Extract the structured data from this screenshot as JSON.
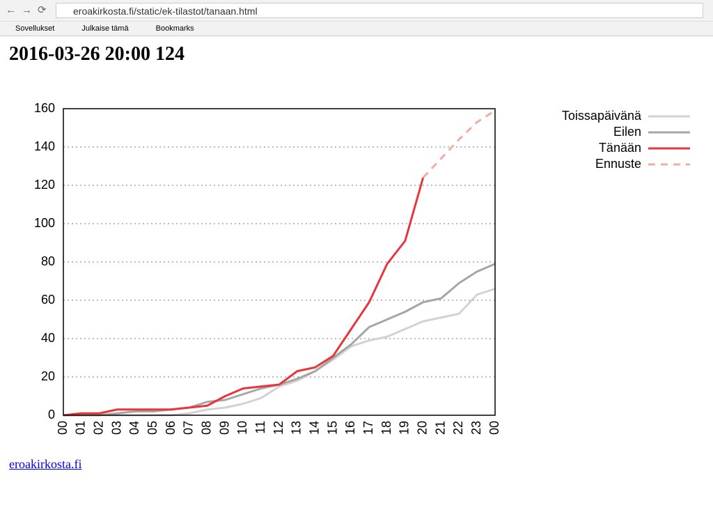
{
  "browser": {
    "url": "eroakirkosta.fi/static/ek-tilastot/tanaan.html",
    "bookmarks": [
      "Sovellukset",
      "Julkaise tämä",
      "Bookmarks"
    ]
  },
  "heading": "2016-03-26 20:00 124",
  "link": "eroakirkosta.fi",
  "chart_data": {
    "type": "line",
    "categories": [
      "00",
      "01",
      "02",
      "03",
      "04",
      "05",
      "06",
      "07",
      "08",
      "09",
      "10",
      "11",
      "12",
      "13",
      "14",
      "15",
      "16",
      "17",
      "18",
      "19",
      "20",
      "21",
      "22",
      "23",
      "00"
    ],
    "series": [
      {
        "name": "Toissapäivänä",
        "color": "#d2d2d2",
        "values": [
          0,
          0,
          0,
          0,
          0,
          0,
          0,
          1,
          3,
          4,
          6,
          9,
          15,
          18,
          23,
          29,
          36,
          39,
          41,
          45,
          49,
          51,
          53,
          63,
          66
        ]
      },
      {
        "name": "Eilen",
        "color": "#a6a6a6",
        "values": [
          0,
          0,
          0,
          1,
          2,
          2,
          3,
          4,
          7,
          8,
          11,
          14,
          16,
          19,
          23,
          30,
          37,
          46,
          50,
          54,
          59,
          61,
          69,
          75,
          79
        ]
      },
      {
        "name": "Tänään",
        "color": "#e8353b",
        "values": [
          0,
          1,
          1,
          3,
          3,
          3,
          3,
          4,
          5,
          10,
          14,
          15,
          16,
          23,
          25,
          31,
          45,
          59,
          79,
          91,
          124,
          null,
          null,
          null,
          null
        ]
      },
      {
        "name": "Ennuste",
        "color": "#f5aaa3",
        "dashed": true,
        "values": [
          null,
          null,
          null,
          null,
          null,
          null,
          null,
          null,
          null,
          null,
          null,
          null,
          null,
          null,
          null,
          null,
          null,
          null,
          null,
          null,
          124,
          134,
          144,
          153,
          159
        ]
      }
    ],
    "ylim": [
      0,
      160
    ],
    "yticks": [
      0,
      20,
      40,
      60,
      80,
      100,
      120,
      140,
      160
    ],
    "grid": true,
    "legend": "right"
  }
}
